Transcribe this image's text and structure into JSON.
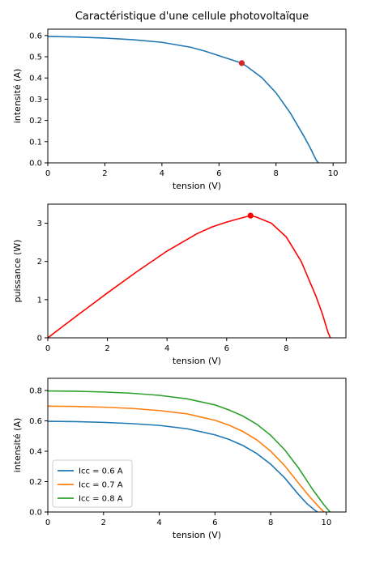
{
  "figure": {
    "title": "Caractéristique d'une cellule photovoltaïque"
  },
  "chart_data": [
    {
      "type": "line",
      "xlabel": "tension (V)",
      "ylabel": "intensité (A)",
      "xlim": [
        0,
        10.45
      ],
      "ylim": [
        0,
        0.63
      ],
      "xticks": [
        0,
        2,
        4,
        6,
        8,
        10
      ],
      "yticks": [
        0.0,
        0.1,
        0.2,
        0.3,
        0.4,
        0.5,
        0.6
      ],
      "xtick_labels": [
        "0",
        "2",
        "4",
        "6",
        "8",
        "10"
      ],
      "ytick_labels": [
        "0.0",
        "0.1",
        "0.2",
        "0.3",
        "0.4",
        "0.5",
        "0.6"
      ],
      "grid": false,
      "series": [
        {
          "color": "#1f77b4",
          "x": [
            0,
            1,
            2,
            3,
            4,
            5,
            5.5,
            6,
            6.5,
            6.8,
            7,
            7.5,
            8,
            8.5,
            9,
            9.2,
            9.4,
            9.48
          ],
          "values": [
            0.596,
            0.593,
            0.588,
            0.58,
            0.568,
            0.545,
            0.527,
            0.505,
            0.483,
            0.47,
            0.452,
            0.402,
            0.33,
            0.235,
            0.12,
            0.07,
            0.015,
            0.0
          ]
        }
      ],
      "marker": {
        "x": 6.8,
        "y": 0.47,
        "color": "#d62728"
      }
    },
    {
      "type": "line",
      "xlabel": "tension (V)",
      "ylabel": "puissance (W)",
      "xlim": [
        0,
        10
      ],
      "ylim": [
        0,
        3.5
      ],
      "xticks": [
        0,
        2,
        4,
        6,
        8
      ],
      "yticks": [
        0,
        1,
        2,
        3
      ],
      "xtick_labels": [
        "0",
        "2",
        "4",
        "6",
        "8"
      ],
      "ytick_labels": [
        "0",
        "1",
        "2",
        "3"
      ],
      "grid": false,
      "series": [
        {
          "color": "#ff0000",
          "x": [
            0,
            1,
            2,
            3,
            4,
            5,
            5.5,
            6,
            6.5,
            6.8,
            7,
            7.5,
            8,
            8.5,
            9,
            9.2,
            9.4,
            9.48
          ],
          "values": [
            0,
            0.593,
            1.176,
            1.74,
            2.272,
            2.725,
            2.9,
            3.03,
            3.14,
            3.2,
            3.16,
            3.0,
            2.64,
            2.0,
            1.08,
            0.65,
            0.14,
            0
          ]
        }
      ],
      "marker": {
        "x": 6.8,
        "y": 3.2,
        "color": "#ff0000"
      }
    },
    {
      "type": "line",
      "xlabel": "tension (V)",
      "ylabel": "intensité (A)",
      "xlim": [
        0,
        10.7
      ],
      "ylim": [
        0,
        0.88
      ],
      "xticks": [
        0,
        2,
        4,
        6,
        8,
        10
      ],
      "yticks": [
        0.0,
        0.2,
        0.4,
        0.6,
        0.8
      ],
      "xtick_labels": [
        "0",
        "2",
        "4",
        "6",
        "8",
        "10"
      ],
      "ytick_labels": [
        "0.0",
        "0.2",
        "0.4",
        "0.6",
        "0.8"
      ],
      "grid": false,
      "legend": "lower-left",
      "series": [
        {
          "name": "Icc = 0.6 A",
          "color": "#1f77b4",
          "x": [
            0,
            1,
            2,
            3,
            4,
            5,
            6,
            6.5,
            7,
            7.5,
            8,
            8.5,
            9,
            9.3,
            9.6,
            9.68
          ],
          "values": [
            0.597,
            0.595,
            0.59,
            0.582,
            0.57,
            0.548,
            0.508,
            0.478,
            0.438,
            0.385,
            0.315,
            0.225,
            0.115,
            0.055,
            0.01,
            0.0
          ]
        },
        {
          "name": "Icc = 0.7 A",
          "color": "#ff7f0e",
          "x": [
            0,
            1,
            2,
            3,
            4,
            5,
            6,
            6.5,
            7,
            7.5,
            8,
            8.5,
            9,
            9.4,
            9.8,
            9.92
          ],
          "values": [
            0.697,
            0.695,
            0.69,
            0.682,
            0.668,
            0.646,
            0.604,
            0.572,
            0.53,
            0.475,
            0.4,
            0.305,
            0.19,
            0.1,
            0.02,
            0.0
          ]
        },
        {
          "name": "Icc = 0.8 A",
          "color": "#2ca02c",
          "x": [
            0,
            1,
            2,
            3,
            4,
            5,
            6,
            6.5,
            7,
            7.5,
            8,
            8.5,
            9,
            9.5,
            9.9,
            10.13
          ],
          "values": [
            0.797,
            0.795,
            0.79,
            0.782,
            0.768,
            0.745,
            0.705,
            0.672,
            0.632,
            0.578,
            0.505,
            0.41,
            0.29,
            0.15,
            0.05,
            0.0
          ]
        }
      ]
    }
  ]
}
